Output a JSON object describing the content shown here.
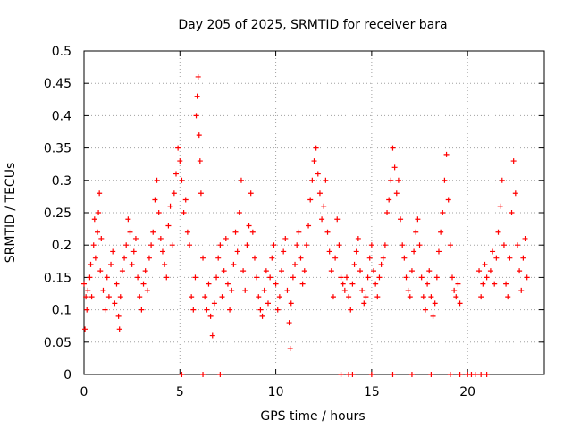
{
  "chart_data": {
    "type": "scatter",
    "title": "Day 205 of 2025, SRMTID for receiver bara",
    "xlabel": "GPS time / hours",
    "ylabel": "SRMTID / TECUs",
    "xlim": [
      0,
      24
    ],
    "ylim": [
      0,
      0.5
    ],
    "xticks": [
      0,
      5,
      10,
      15,
      20
    ],
    "xtick_labels": [
      "0",
      "5",
      "10",
      "15",
      "20"
    ],
    "yticks": [
      0,
      0.05,
      0.1,
      0.15,
      0.2,
      0.25,
      0.3,
      0.35,
      0.4,
      0.45,
      0.5
    ],
    "ytick_labels": [
      "0",
      "0.05",
      "0.1",
      "0.15",
      "0.2",
      "0.25",
      "0.3",
      "0.35",
      "0.4",
      "0.45",
      "0.5"
    ],
    "grid": true,
    "marker": "+",
    "color": "#ff0000",
    "series": [
      {
        "name": "SRMTID",
        "points": [
          [
            0.0,
            0.14
          ],
          [
            0.05,
            0.07
          ],
          [
            0.1,
            0.12
          ],
          [
            0.15,
            0.1
          ],
          [
            0.2,
            0.13
          ],
          [
            0.3,
            0.15
          ],
          [
            0.35,
            0.17
          ],
          [
            0.4,
            0.12
          ],
          [
            0.5,
            0.2
          ],
          [
            0.55,
            0.24
          ],
          [
            0.6,
            0.18
          ],
          [
            0.7,
            0.22
          ],
          [
            0.75,
            0.25
          ],
          [
            0.8,
            0.28
          ],
          [
            0.85,
            0.16
          ],
          [
            0.9,
            0.21
          ],
          [
            1.0,
            0.13
          ],
          [
            1.1,
            0.1
          ],
          [
            1.2,
            0.15
          ],
          [
            1.3,
            0.12
          ],
          [
            1.4,
            0.17
          ],
          [
            1.5,
            0.19
          ],
          [
            1.6,
            0.11
          ],
          [
            1.7,
            0.14
          ],
          [
            1.8,
            0.09
          ],
          [
            1.85,
            0.07
          ],
          [
            1.9,
            0.12
          ],
          [
            2.0,
            0.16
          ],
          [
            2.1,
            0.18
          ],
          [
            2.2,
            0.2
          ],
          [
            2.3,
            0.24
          ],
          [
            2.4,
            0.22
          ],
          [
            2.5,
            0.17
          ],
          [
            2.6,
            0.19
          ],
          [
            2.7,
            0.21
          ],
          [
            2.8,
            0.15
          ],
          [
            2.9,
            0.12
          ],
          [
            3.0,
            0.1
          ],
          [
            3.1,
            0.14
          ],
          [
            3.2,
            0.16
          ],
          [
            3.3,
            0.13
          ],
          [
            3.4,
            0.18
          ],
          [
            3.5,
            0.2
          ],
          [
            3.6,
            0.22
          ],
          [
            3.7,
            0.27
          ],
          [
            3.8,
            0.3
          ],
          [
            3.9,
            0.25
          ],
          [
            4.0,
            0.21
          ],
          [
            4.1,
            0.19
          ],
          [
            4.2,
            0.17
          ],
          [
            4.3,
            0.15
          ],
          [
            4.4,
            0.23
          ],
          [
            4.5,
            0.26
          ],
          [
            4.6,
            0.2
          ],
          [
            4.7,
            0.28
          ],
          [
            4.8,
            0.31
          ],
          [
            4.9,
            0.35
          ],
          [
            5.0,
            0.33
          ],
          [
            5.1,
            0.3
          ],
          [
            5.2,
            0.25
          ],
          [
            5.3,
            0.27
          ],
          [
            5.4,
            0.22
          ],
          [
            5.5,
            0.2
          ],
          [
            5.6,
            0.12
          ],
          [
            5.7,
            0.1
          ],
          [
            5.8,
            0.15
          ],
          [
            5.85,
            0.4
          ],
          [
            5.9,
            0.43
          ],
          [
            5.95,
            0.46
          ],
          [
            6.0,
            0.37
          ],
          [
            6.05,
            0.33
          ],
          [
            6.1,
            0.28
          ],
          [
            6.2,
            0.18
          ],
          [
            6.3,
            0.12
          ],
          [
            6.4,
            0.1
          ],
          [
            6.5,
            0.14
          ],
          [
            6.6,
            0.09
          ],
          [
            6.7,
            0.06
          ],
          [
            6.8,
            0.11
          ],
          [
            6.9,
            0.15
          ],
          [
            7.0,
            0.18
          ],
          [
            7.1,
            0.2
          ],
          [
            7.2,
            0.12
          ],
          [
            7.3,
            0.16
          ],
          [
            7.4,
            0.21
          ],
          [
            7.5,
            0.14
          ],
          [
            7.6,
            0.1
          ],
          [
            7.7,
            0.13
          ],
          [
            7.8,
            0.17
          ],
          [
            7.9,
            0.22
          ],
          [
            8.0,
            0.19
          ],
          [
            8.1,
            0.25
          ],
          [
            8.2,
            0.3
          ],
          [
            8.3,
            0.16
          ],
          [
            8.4,
            0.13
          ],
          [
            8.5,
            0.2
          ],
          [
            8.6,
            0.23
          ],
          [
            8.7,
            0.28
          ],
          [
            8.8,
            0.22
          ],
          [
            8.9,
            0.18
          ],
          [
            9.0,
            0.15
          ],
          [
            9.1,
            0.12
          ],
          [
            9.2,
            0.1
          ],
          [
            9.3,
            0.09
          ],
          [
            9.4,
            0.13
          ],
          [
            9.5,
            0.16
          ],
          [
            9.6,
            0.11
          ],
          [
            9.7,
            0.15
          ],
          [
            9.8,
            0.18
          ],
          [
            9.9,
            0.2
          ],
          [
            10.0,
            0.14
          ],
          [
            10.1,
            0.1
          ],
          [
            10.2,
            0.12
          ],
          [
            10.3,
            0.16
          ],
          [
            10.4,
            0.19
          ],
          [
            10.5,
            0.21
          ],
          [
            10.6,
            0.13
          ],
          [
            10.7,
            0.08
          ],
          [
            10.75,
            0.04
          ],
          [
            10.8,
            0.11
          ],
          [
            10.9,
            0.15
          ],
          [
            11.0,
            0.17
          ],
          [
            11.1,
            0.2
          ],
          [
            11.2,
            0.22
          ],
          [
            11.3,
            0.18
          ],
          [
            11.4,
            0.14
          ],
          [
            11.5,
            0.16
          ],
          [
            11.6,
            0.2
          ],
          [
            11.7,
            0.23
          ],
          [
            11.8,
            0.27
          ],
          [
            11.9,
            0.3
          ],
          [
            12.0,
            0.33
          ],
          [
            12.1,
            0.35
          ],
          [
            12.2,
            0.31
          ],
          [
            12.3,
            0.28
          ],
          [
            12.4,
            0.24
          ],
          [
            12.5,
            0.26
          ],
          [
            12.6,
            0.3
          ],
          [
            12.7,
            0.22
          ],
          [
            12.8,
            0.19
          ],
          [
            12.9,
            0.16
          ],
          [
            13.0,
            0.12
          ],
          [
            13.1,
            0.18
          ],
          [
            13.2,
            0.24
          ],
          [
            13.3,
            0.2
          ],
          [
            13.4,
            0.15
          ],
          [
            13.5,
            0.14
          ],
          [
            13.6,
            0.13
          ],
          [
            13.7,
            0.15
          ],
          [
            13.8,
            0.12
          ],
          [
            13.9,
            0.1
          ],
          [
            14.0,
            0.14
          ],
          [
            14.1,
            0.17
          ],
          [
            14.2,
            0.19
          ],
          [
            14.3,
            0.21
          ],
          [
            14.4,
            0.16
          ],
          [
            14.5,
            0.13
          ],
          [
            14.6,
            0.11
          ],
          [
            14.7,
            0.12
          ],
          [
            14.8,
            0.15
          ],
          [
            14.9,
            0.18
          ],
          [
            15.0,
            0.2
          ],
          [
            15.1,
            0.16
          ],
          [
            15.2,
            0.14
          ],
          [
            15.3,
            0.12
          ],
          [
            15.4,
            0.15
          ],
          [
            15.5,
            0.17
          ],
          [
            15.6,
            0.18
          ],
          [
            15.7,
            0.2
          ],
          [
            15.8,
            0.25
          ],
          [
            15.9,
            0.27
          ],
          [
            16.0,
            0.3
          ],
          [
            16.1,
            0.35
          ],
          [
            16.2,
            0.32
          ],
          [
            16.3,
            0.28
          ],
          [
            16.4,
            0.3
          ],
          [
            16.5,
            0.24
          ],
          [
            16.6,
            0.2
          ],
          [
            16.7,
            0.18
          ],
          [
            16.8,
            0.15
          ],
          [
            16.9,
            0.13
          ],
          [
            17.0,
            0.12
          ],
          [
            17.1,
            0.16
          ],
          [
            17.2,
            0.19
          ],
          [
            17.3,
            0.22
          ],
          [
            17.4,
            0.24
          ],
          [
            17.5,
            0.2
          ],
          [
            17.6,
            0.15
          ],
          [
            17.7,
            0.12
          ],
          [
            17.8,
            0.1
          ],
          [
            17.9,
            0.14
          ],
          [
            18.0,
            0.16
          ],
          [
            18.1,
            0.12
          ],
          [
            18.2,
            0.09
          ],
          [
            18.3,
            0.11
          ],
          [
            18.4,
            0.15
          ],
          [
            18.5,
            0.19
          ],
          [
            18.6,
            0.22
          ],
          [
            18.7,
            0.25
          ],
          [
            18.8,
            0.3
          ],
          [
            18.9,
            0.34
          ],
          [
            19.0,
            0.27
          ],
          [
            19.1,
            0.2
          ],
          [
            19.2,
            0.15
          ],
          [
            19.3,
            0.13
          ],
          [
            19.4,
            0.12
          ],
          [
            19.5,
            0.14
          ],
          [
            19.6,
            0.11
          ],
          [
            20.6,
            0.16
          ],
          [
            20.7,
            0.12
          ],
          [
            20.8,
            0.14
          ],
          [
            20.9,
            0.17
          ],
          [
            21.0,
            0.15
          ],
          [
            21.2,
            0.16
          ],
          [
            21.3,
            0.19
          ],
          [
            21.4,
            0.14
          ],
          [
            21.5,
            0.18
          ],
          [
            21.6,
            0.22
          ],
          [
            21.7,
            0.26
          ],
          [
            21.8,
            0.3
          ],
          [
            21.9,
            0.2
          ],
          [
            22.0,
            0.14
          ],
          [
            22.1,
            0.12
          ],
          [
            22.2,
            0.18
          ],
          [
            22.3,
            0.25
          ],
          [
            22.4,
            0.33
          ],
          [
            22.5,
            0.28
          ],
          [
            22.6,
            0.2
          ],
          [
            22.7,
            0.16
          ],
          [
            22.8,
            0.13
          ],
          [
            22.9,
            0.18
          ],
          [
            23.0,
            0.21
          ],
          [
            23.1,
            0.15
          ],
          [
            5.1,
            0.0
          ],
          [
            6.2,
            0.0
          ],
          [
            7.1,
            0.0
          ],
          [
            13.4,
            0.0
          ],
          [
            13.8,
            0.0
          ],
          [
            14.0,
            0.0
          ],
          [
            15.0,
            0.0
          ],
          [
            16.1,
            0.0
          ],
          [
            17.1,
            0.0
          ],
          [
            18.1,
            0.0
          ],
          [
            19.1,
            0.0
          ],
          [
            19.6,
            0.0
          ],
          [
            20.0,
            0.0
          ],
          [
            20.2,
            0.0
          ],
          [
            20.4,
            0.0
          ],
          [
            20.7,
            0.0
          ],
          [
            21.0,
            0.0
          ]
        ]
      }
    ]
  }
}
